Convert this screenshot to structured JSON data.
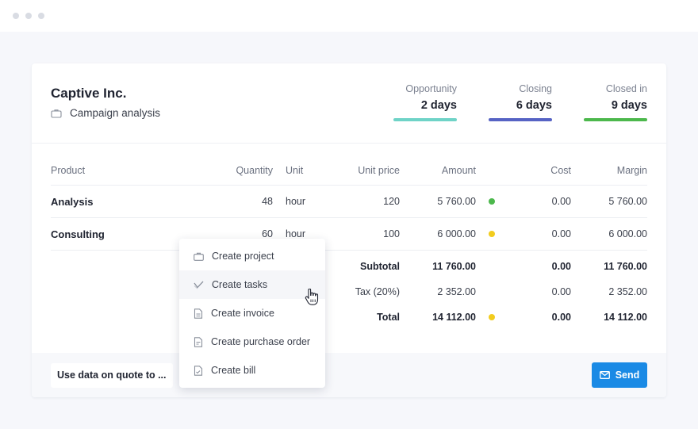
{
  "company": "Captive Inc.",
  "project": "Campaign analysis",
  "stages": [
    {
      "label": "Opportunity",
      "value": "2 days",
      "color": "#6fd3c7"
    },
    {
      "label": "Closing",
      "value": "6 days",
      "color": "#5663c4"
    },
    {
      "label": "Closed in",
      "value": "9 days",
      "color": "#4cb84c"
    }
  ],
  "table": {
    "headers": {
      "product": "Product",
      "quantity": "Quantity",
      "unit": "Unit",
      "unit_price": "Unit price",
      "amount": "Amount",
      "cost": "Cost",
      "margin": "Margin"
    },
    "rows": [
      {
        "product": "Analysis",
        "quantity": "48",
        "unit": "hour",
        "unit_price": "120",
        "amount": "5 760.00",
        "status_color": "#4cb84c",
        "cost": "0.00",
        "margin": "5 760.00"
      },
      {
        "product": "Consulting",
        "quantity": "60",
        "unit": "hour",
        "unit_price": "100",
        "amount": "6 000.00",
        "status_color": "#f2cc1e",
        "cost": "0.00",
        "margin": "6 000.00"
      }
    ],
    "subtotal": {
      "label": "Subtotal",
      "amount": "11 760.00",
      "cost": "0.00",
      "margin": "11 760.00"
    },
    "tax": {
      "label": "Tax (20%)",
      "amount": "2 352.00",
      "cost": "0.00",
      "margin": "2 352.00"
    },
    "total": {
      "label": "Total",
      "amount": "14 112.00",
      "status_color": "#f2cc1e",
      "cost": "0.00",
      "margin": "14 112.00"
    }
  },
  "footer": {
    "use_data_label": "Use data on quote to ...",
    "send_label": "Send"
  },
  "menu": [
    {
      "label": "Create project",
      "icon": "briefcase-icon"
    },
    {
      "label": "Create tasks",
      "icon": "checkmark-icon"
    },
    {
      "label": "Create invoice",
      "icon": "invoice-icon"
    },
    {
      "label": "Create purchase order",
      "icon": "purchase-order-icon"
    },
    {
      "label": "Create bill",
      "icon": "bill-icon"
    }
  ]
}
